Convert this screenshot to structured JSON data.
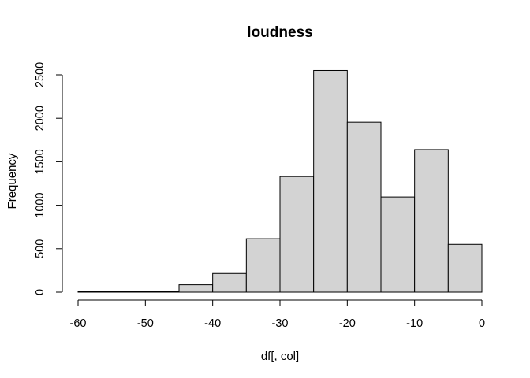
{
  "chart_data": {
    "type": "bar",
    "title": "loudness",
    "xlabel": "df[, col]",
    "ylabel": "Frequency",
    "bins": [
      {
        "x0": -60,
        "x1": -55,
        "count": 5
      },
      {
        "x0": -55,
        "x1": -50,
        "count": 5
      },
      {
        "x0": -50,
        "x1": -45,
        "count": 5
      },
      {
        "x0": -45,
        "x1": -40,
        "count": 85
      },
      {
        "x0": -40,
        "x1": -35,
        "count": 215
      },
      {
        "x0": -35,
        "x1": -30,
        "count": 615
      },
      {
        "x0": -30,
        "x1": -25,
        "count": 1330
      },
      {
        "x0": -25,
        "x1": -20,
        "count": 2550
      },
      {
        "x0": -20,
        "x1": -15,
        "count": 1955
      },
      {
        "x0": -15,
        "x1": -10,
        "count": 1095
      },
      {
        "x0": -10,
        "x1": -5,
        "count": 1640
      },
      {
        "x0": -5,
        "x1": 0,
        "count": 550
      }
    ],
    "xlim": [
      -60,
      0
    ],
    "ylim": [
      0,
      2550
    ],
    "xticks": [
      -60,
      -50,
      -40,
      -30,
      -20,
      -10,
      0
    ],
    "yticks": [
      0,
      500,
      1000,
      1500,
      2000,
      2500
    ],
    "grid": false
  }
}
